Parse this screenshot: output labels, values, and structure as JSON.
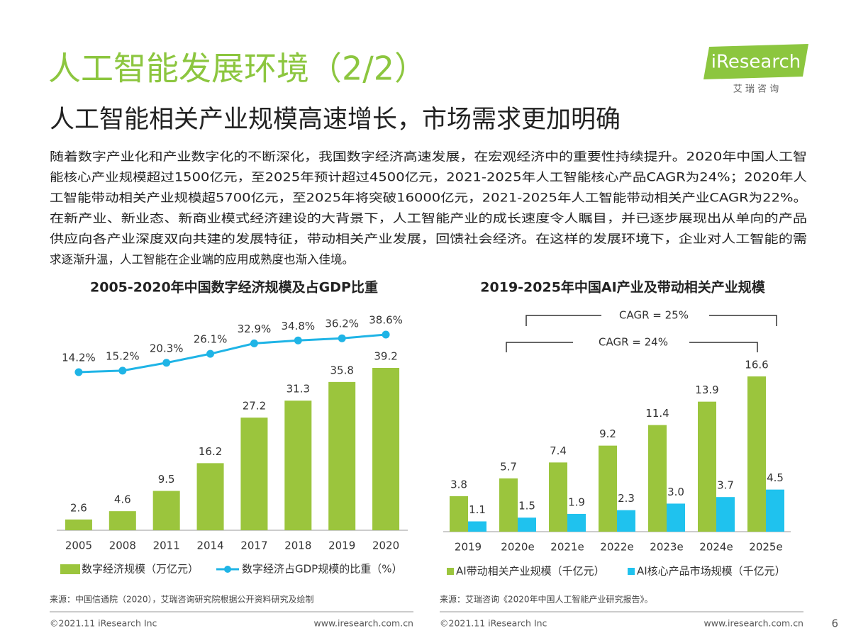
{
  "header": {
    "title": "人工智能发展环境（2/2）",
    "subtitle": "人工智能相关产业规模高速增长，市场需求更加明确",
    "logo": "iResearch",
    "logo_cn": "艾 瑞 咨 询"
  },
  "body": [
    "随着数字产业化和产业数字化的不断深化，我国数字经济高速发展，在宏观经济中的重要性持续提升。2020年中国人工智",
    "能核心产业规模超过1500亿元，至2025年预计超过4500亿元，2021-2025年人工智能核心产品CAGR为24%；2020年人",
    "工智能带动相关产业规模超5700亿元，至2025年将突破16000亿元，2021-2025年人工智能带动相关产业CAGR为22%。",
    "在新产业、新业态、新商业模式经济建设的大背景下，人工智能产业的成长速度令人瞩目，并已逐步展现出从单向的产品",
    "供应向各产业深度双向共建的发展特征，带动相关产业发展，回馈社会经济。在这样的发展环境下，企业对人工智能的需",
    "求逐渐升温，人工智能在企业端的应用成熟度也渐入佳境。"
  ],
  "chart_data": [
    {
      "type": "combo",
      "title": "2005-2020年中国数字经济规模及占GDP比重",
      "categories": [
        "2005",
        "2008",
        "2011",
        "2014",
        "2017",
        "2018",
        "2019",
        "2020"
      ],
      "series": [
        {
          "name": "数字经济规模（万亿元）",
          "type": "bar",
          "color": "#9bc53d",
          "values": [
            2.6,
            4.6,
            9.5,
            16.2,
            27.2,
            31.3,
            35.8,
            39.2
          ]
        },
        {
          "name": "数字经济占GDP规模的比重（%）",
          "type": "line",
          "axis": "y2",
          "color": "#1fb4e6",
          "values": [
            14.2,
            15.2,
            20.3,
            26.1,
            32.9,
            34.8,
            36.2,
            38.6
          ],
          "value_labels": [
            "14.2%",
            "15.2%",
            "20.3%",
            "26.1%",
            "32.9%",
            "34.8%",
            "36.2%",
            "38.6%"
          ]
        }
      ]
    },
    {
      "type": "bar",
      "title": "2019-2025年中国AI产业及带动相关产业规模",
      "categories": [
        "2019",
        "2020e",
        "2021e",
        "2022e",
        "2023e",
        "2024e",
        "2025e"
      ],
      "annotations": [
        "CAGR = 25%",
        "CAGR = 24%"
      ],
      "series": [
        {
          "name": "AI带动相关产业规模（千亿元）",
          "color": "#9bc53d",
          "values": [
            3.8,
            5.7,
            7.4,
            9.2,
            11.4,
            13.9,
            16.6
          ]
        },
        {
          "name": "AI核心产品市场规模（千亿元）",
          "color": "#1fc2ee",
          "values": [
            1.1,
            1.5,
            1.9,
            2.3,
            3.0,
            3.7,
            4.5
          ],
          "value_labels": [
            "1.1",
            "1.5",
            "1.9",
            "2.3",
            "3.0",
            "3.7",
            "4.5"
          ]
        }
      ]
    }
  ],
  "footer": {
    "source_left": "来源：中国信通院（2020），艾瑞咨询研究院根据公开资料研究及绘制",
    "source_right": "来源：艾瑞咨询《2020年中国人工智能产业研究报告》。",
    "copyright": "©2021.11 iResearch Inc",
    "url": "www.iresearch.com.cn",
    "page": "6"
  }
}
